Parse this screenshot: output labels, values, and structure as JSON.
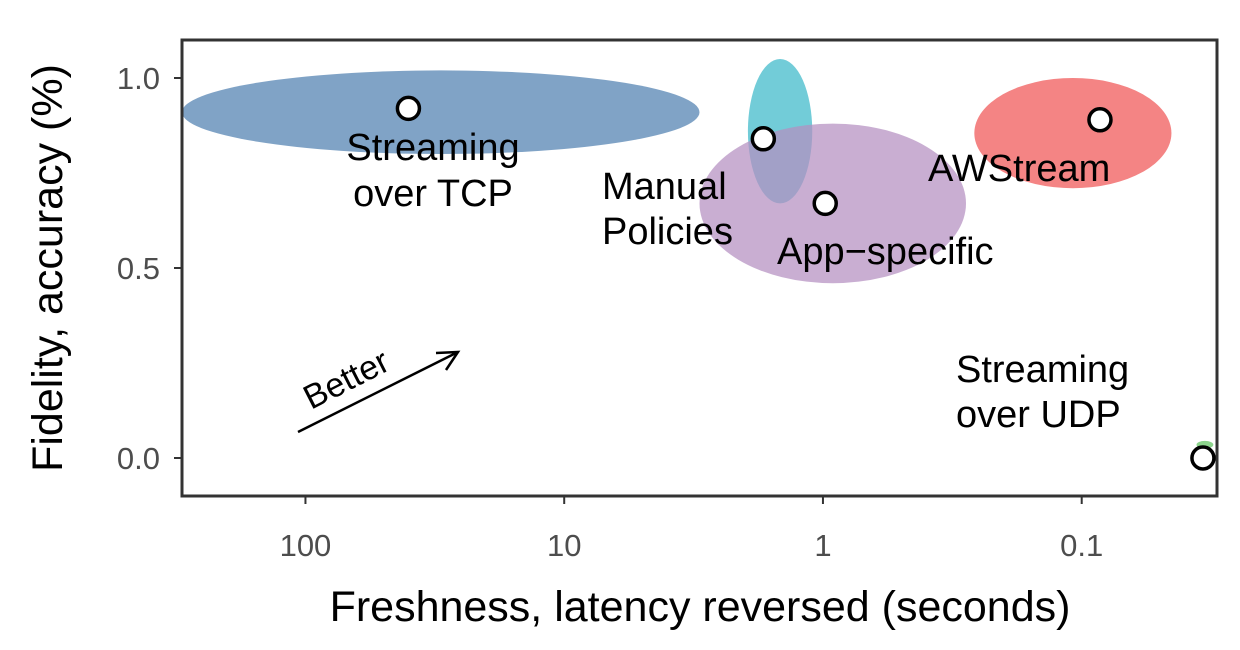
{
  "chart_data": {
    "type": "scatter",
    "title": "",
    "xlabel": "Freshness, latency reversed (seconds)",
    "ylabel": "Fidelity, accuracy (%)",
    "x_scale": "log",
    "x_reversed": true,
    "xlim": [
      300,
      0.03
    ],
    "ylim": [
      -0.1,
      1.1
    ],
    "x_ticks": [
      {
        "value": 100,
        "label": "100"
      },
      {
        "value": 10,
        "label": "10"
      },
      {
        "value": 1,
        "label": "1"
      },
      {
        "value": 0.1,
        "label": "0.1"
      }
    ],
    "y_ticks": [
      {
        "value": 0.0,
        "label": "0.0"
      },
      {
        "value": 0.5,
        "label": "0.5"
      },
      {
        "value": 1.0,
        "label": "1.0"
      }
    ],
    "grid": false,
    "legend": "none",
    "points": [
      {
        "name": "Streaming over TCP",
        "label_lines": [
          "Streaming",
          "over TCP"
        ],
        "x": 40,
        "y": 0.92,
        "color": "#4f7fb0"
      },
      {
        "name": "Manual Policies",
        "label_lines": [
          "Manual",
          "Policies"
        ],
        "x": 1.7,
        "y": 0.84,
        "color": "#3bb9c9"
      },
      {
        "name": "App-specific",
        "label_lines": [
          "App−specific"
        ],
        "x": 0.98,
        "y": 0.67,
        "color": "#b48fc0"
      },
      {
        "name": "AWStream",
        "label_lines": [
          "AWStream"
        ],
        "x": 0.085,
        "y": 0.89,
        "color": "#f05454"
      },
      {
        "name": "Streaming over UDP",
        "label_lines": [
          "Streaming",
          "over UDP"
        ],
        "x": 0.034,
        "y": 0.0,
        "color": "#5fc35f"
      }
    ],
    "regions": [
      {
        "for": "Streaming over TCP",
        "x_range": [
          300,
          3.0
        ],
        "y_range": [
          0.8,
          1.02
        ],
        "color": "#4f7fb0"
      },
      {
        "for": "Manual Policies",
        "x_range": [
          1.95,
          1.1
        ],
        "y_range": [
          0.67,
          1.05
        ],
        "color": "#3bb9c9"
      },
      {
        "for": "App-specific",
        "x_range": [
          3.0,
          0.28
        ],
        "y_range": [
          0.46,
          0.88
        ],
        "color": "#b48fc0"
      },
      {
        "for": "AWStream",
        "x_range": [
          0.26,
          0.045
        ],
        "y_range": [
          0.71,
          1.0
        ],
        "color": "#f05454"
      },
      {
        "for": "Streaming over UDP",
        "x_range": [
          0.036,
          0.031
        ],
        "y_range": [
          0.025,
          0.045
        ],
        "color": "#5fc35f"
      }
    ],
    "annotation": {
      "text": "Better",
      "arrow": "toward higher fidelity and freshness"
    }
  }
}
